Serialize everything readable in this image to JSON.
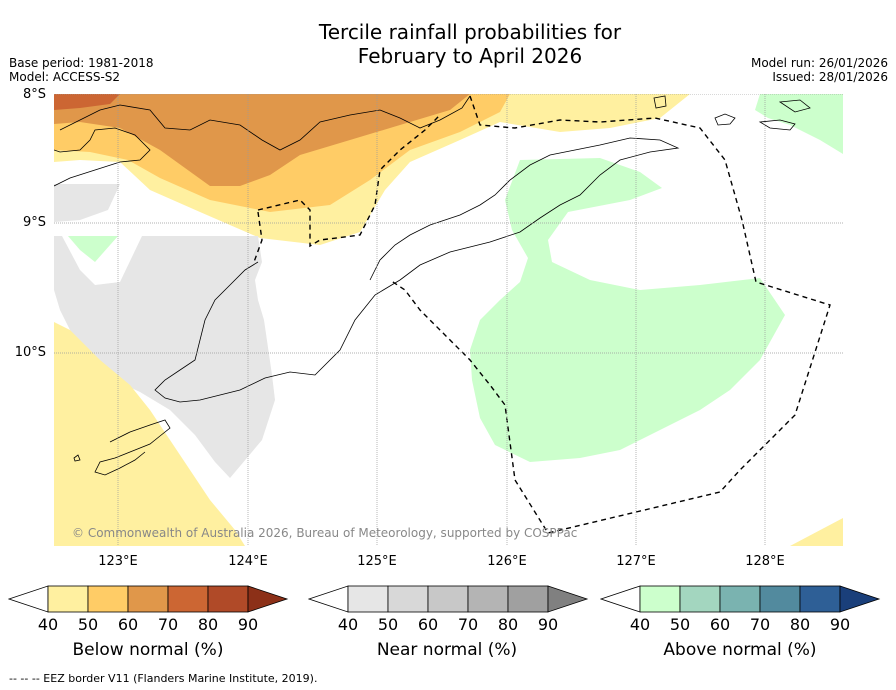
{
  "title_line1": "Tercile rainfall probabilities for",
  "title_line2": "February to April 2026",
  "meta": {
    "base_period": "Base period: 1981-2018",
    "model": "Model: ACCESS-S2",
    "model_run": "Model run: 26/01/2026",
    "issued": "Issued: 28/01/2026"
  },
  "map": {
    "lat_labels": [
      "8°S",
      "9°S",
      "10°S"
    ],
    "lon_labels": [
      "123°E",
      "124°E",
      "125°E",
      "126°E",
      "127°E",
      "128°E"
    ],
    "copyright": "© Commonwealth of Australia 2026, Bureau of Meteorology, supported by COSPPac"
  },
  "colorbars": {
    "below": {
      "label": "Below normal (%)",
      "ticks": [
        "40",
        "50",
        "60",
        "70",
        "80",
        "90"
      ],
      "colors": [
        "#ffffff",
        "#fff0a0",
        "#ffcc66",
        "#e0974a",
        "#cc6633",
        "#b04a28",
        "#8c3018"
      ]
    },
    "near": {
      "label": "Near normal (%)",
      "ticks": [
        "40",
        "50",
        "60",
        "70",
        "80",
        "90"
      ],
      "colors": [
        "#ffffff",
        "#e6e6e6",
        "#d8d8d8",
        "#c8c8c8",
        "#b4b4b4",
        "#a0a0a0",
        "#808080"
      ]
    },
    "above": {
      "label": "Above normal (%)",
      "ticks": [
        "40",
        "50",
        "60",
        "70",
        "80",
        "90"
      ],
      "colors": [
        "#ffffff",
        "#ccffcc",
        "#a3d6bf",
        "#7ab3b0",
        "#528a9e",
        "#2e5f96",
        "#1a3f7a"
      ]
    }
  },
  "footer": "--  --  -- EEZ border V11 (Flanders Marine Institute, 2019)."
}
